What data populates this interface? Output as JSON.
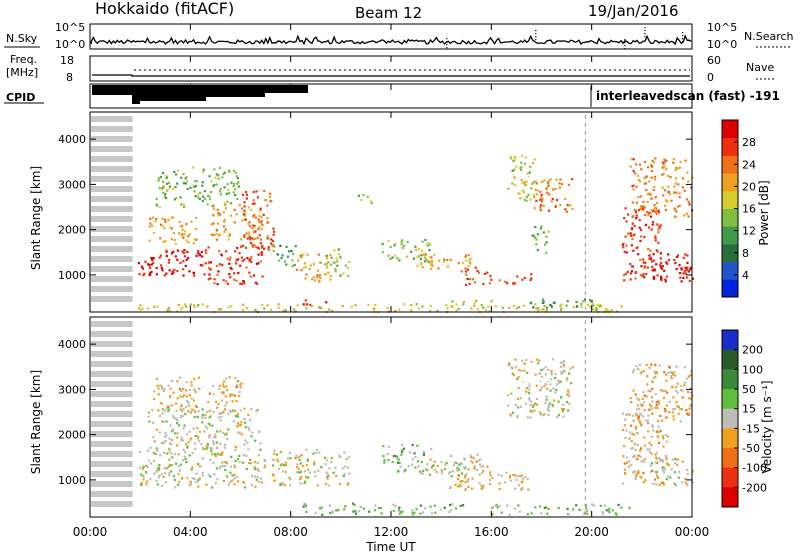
{
  "chart_data": {
    "type": "heatmap",
    "title_left": "Hokkaido (fitACF)",
    "title_center": "Beam 12",
    "title_right": "19/Jan/2016",
    "xlabel": "Time UT",
    "x_ticks": [
      "00:00",
      "04:00",
      "08:00",
      "12:00",
      "16:00",
      "20:00",
      "00:00"
    ],
    "xlim_hours": [
      0,
      24
    ],
    "top_panels": {
      "nsky": {
        "label": "N.Sky",
        "right_label": "N.Search",
        "tick_top": "10^5",
        "tick_bottom": "10^0",
        "right_tick_top": "10^5",
        "right_tick_bottom": "10^0"
      },
      "freq": {
        "label_line1": "Freq.",
        "label_line2": "[MHz]",
        "tick_top": "18",
        "tick_bottom": "8",
        "right_label": "Nave",
        "right_tick_top": "60",
        "right_tick_bottom": "0"
      },
      "cpid": {
        "label": "CPID",
        "annotation": "interleavedscan (fast) -191"
      }
    },
    "range_axis": {
      "ylabel": "Slant Range [km]",
      "ylim": [
        180,
        4600
      ],
      "ticks": [
        "1000",
        "2000",
        "3000",
        "4000"
      ]
    },
    "power_panel": {
      "colorbar_label": "Power [dB]",
      "colorbar_ticks": [
        "4",
        "8",
        "12",
        "16",
        "20",
        "24",
        "28"
      ],
      "color_stops": [
        "#0022dd",
        "#2255cc",
        "#2a6e3a",
        "#3f9a4a",
        "#7fc040",
        "#d6cc30",
        "#f0a020",
        "#f07018",
        "#ee3010",
        "#dd0000"
      ],
      "scatter_regions": [
        {
          "t0": 1.9,
          "t1": 4.5,
          "r0": 1000,
          "r1": 1600,
          "val": 28
        },
        {
          "t0": 4.5,
          "t1": 6.9,
          "r0": 820,
          "r1": 1700,
          "val": 26
        },
        {
          "t0": 2.3,
          "t1": 4.2,
          "r0": 1700,
          "r1": 2300,
          "val": 20
        },
        {
          "t0": 4.8,
          "t1": 6.8,
          "r0": 1800,
          "r1": 2600,
          "val": 21
        },
        {
          "t0": 2.6,
          "t1": 5.9,
          "r0": 2500,
          "r1": 3400,
          "val": 14
        },
        {
          "t0": 6.0,
          "t1": 7.3,
          "r0": 1500,
          "r1": 2900,
          "val": 24
        },
        {
          "t0": 7.2,
          "t1": 8.2,
          "r0": 1200,
          "r1": 1700,
          "val": 13
        },
        {
          "t0": 8.2,
          "t1": 9.6,
          "r0": 850,
          "r1": 1500,
          "val": 20
        },
        {
          "t0": 9.3,
          "t1": 10.3,
          "r0": 1000,
          "r1": 1600,
          "val": 15
        },
        {
          "t0": 8.4,
          "t1": 9.4,
          "r0": 350,
          "r1": 500,
          "val": 26
        },
        {
          "t0": 11.6,
          "t1": 13.6,
          "r0": 1300,
          "r1": 1800,
          "val": 15
        },
        {
          "t0": 13.0,
          "t1": 15.2,
          "r0": 1150,
          "r1": 1500,
          "val": 20
        },
        {
          "t0": 14.6,
          "t1": 15.8,
          "r0": 800,
          "r1": 1200,
          "val": 26
        },
        {
          "t0": 15.8,
          "t1": 17.6,
          "r0": 800,
          "r1": 1050,
          "val": 24
        },
        {
          "t0": 14.4,
          "t1": 16.0,
          "r0": 350,
          "r1": 520,
          "val": 16
        },
        {
          "t0": 16.6,
          "t1": 17.7,
          "r0": 2600,
          "r1": 3700,
          "val": 16
        },
        {
          "t0": 17.6,
          "t1": 19.2,
          "r0": 2400,
          "r1": 3200,
          "val": 23
        },
        {
          "t0": 17.6,
          "t1": 18.3,
          "r0": 1500,
          "r1": 2100,
          "val": 14
        },
        {
          "t0": 17.5,
          "t1": 20.5,
          "r0": 250,
          "r1": 480,
          "val": 12
        },
        {
          "t0": 21.2,
          "t1": 22.8,
          "r0": 900,
          "r1": 2500,
          "val": 26
        },
        {
          "t0": 22.3,
          "t1": 24.0,
          "r0": 850,
          "r1": 1500,
          "val": 28
        },
        {
          "t0": 21.5,
          "t1": 24.0,
          "r0": 2300,
          "r1": 3600,
          "val": 22
        },
        {
          "t0": 10.6,
          "t1": 11.2,
          "r0": 2600,
          "r1": 2800,
          "val": 14
        },
        {
          "t0": 1.8,
          "t1": 21.5,
          "r0": 200,
          "r1": 380,
          "val": 18
        }
      ]
    },
    "velocity_panel": {
      "colorbar_label": "Velocity [m s⁻¹]",
      "colorbar_ticks": [
        "200",
        "100",
        "50",
        "15",
        "-15",
        "-50",
        "-100",
        "-200"
      ],
      "color_stops": [
        "#1a2ccc",
        "#2a5a2a",
        "#3a8a3a",
        "#5ec03a",
        "#bdbdb5",
        "#f0a020",
        "#f07018",
        "#ee3010",
        "#dd0000"
      ],
      "scatter_regions": [
        {
          "t0": 1.9,
          "t1": 7.0,
          "r0": 850,
          "r1": 1700,
          "val": 0
        },
        {
          "t0": 2.2,
          "t1": 6.8,
          "r0": 1700,
          "r1": 2600,
          "val": 0
        },
        {
          "t0": 2.5,
          "t1": 6.0,
          "r0": 2500,
          "r1": 3300,
          "val": 35
        },
        {
          "t0": 7.2,
          "t1": 10.3,
          "r0": 900,
          "r1": 1700,
          "val": 0
        },
        {
          "t0": 11.6,
          "t1": 13.6,
          "r0": 1350,
          "r1": 1800,
          "val": -45
        },
        {
          "t0": 12.0,
          "t1": 15.0,
          "r0": 1100,
          "r1": 1400,
          "val": -30
        },
        {
          "t0": 13.5,
          "t1": 15.8,
          "r0": 1200,
          "r1": 1600,
          "val": 30
        },
        {
          "t0": 14.3,
          "t1": 17.6,
          "r0": 800,
          "r1": 1200,
          "val": 30
        },
        {
          "t0": 16.6,
          "t1": 19.2,
          "r0": 2400,
          "r1": 3700,
          "val": 0
        },
        {
          "t0": 21.2,
          "t1": 23.0,
          "r0": 900,
          "r1": 2500,
          "val": 40
        },
        {
          "t0": 22.3,
          "t1": 24.0,
          "r0": 900,
          "r1": 1500,
          "val": 0
        },
        {
          "t0": 21.5,
          "t1": 24.0,
          "r0": 2300,
          "r1": 3600,
          "val": 45
        },
        {
          "t0": 8.4,
          "t1": 15.0,
          "r0": 250,
          "r1": 500,
          "val": -45
        },
        {
          "t0": 16.0,
          "t1": 21.5,
          "r0": 250,
          "r1": 480,
          "val": -40
        }
      ]
    },
    "gaps": {
      "gray_bands_t0": 0.0,
      "gray_bands_t1": 1.7,
      "dashed_line_t": 19.75,
      "range_line_r": 3150
    }
  }
}
